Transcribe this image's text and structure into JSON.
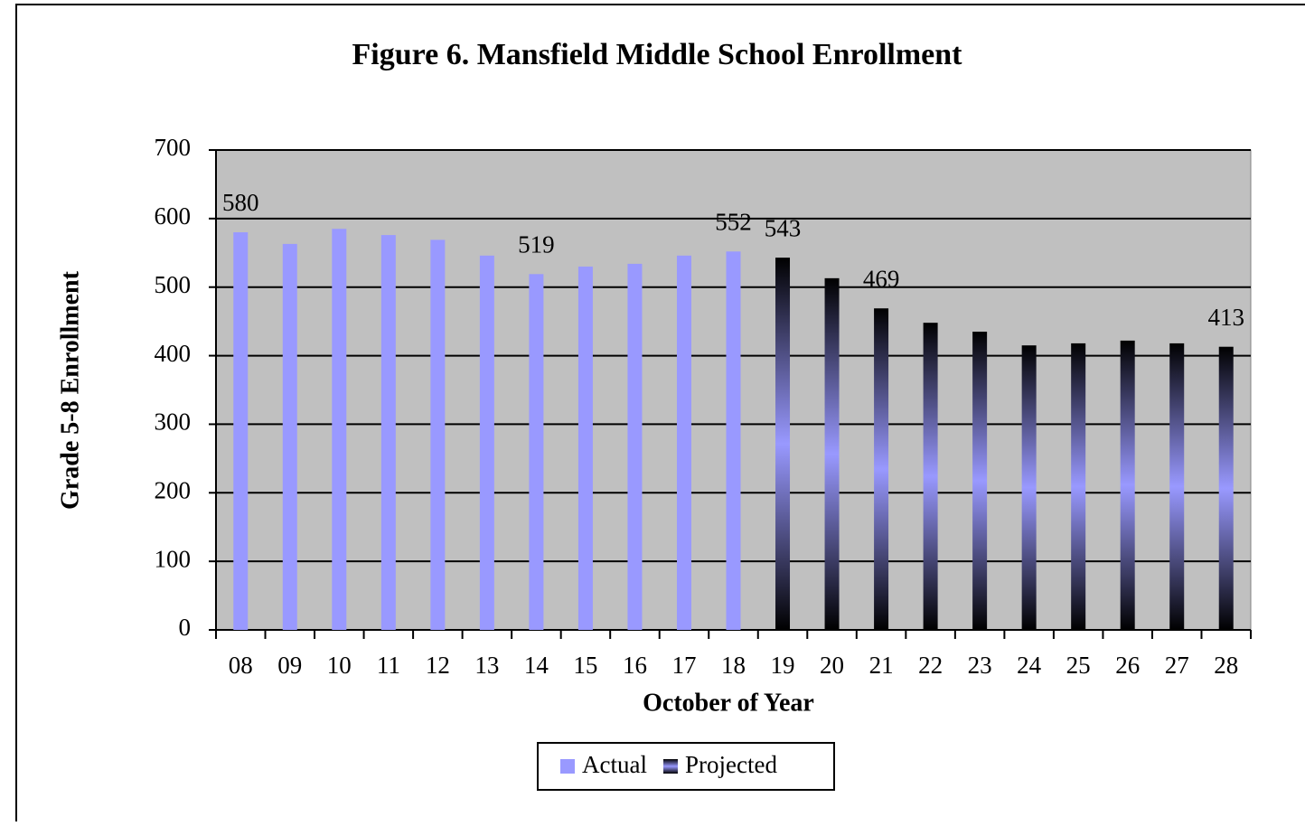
{
  "chart_data": {
    "type": "bar",
    "title": "Figure 6. Mansfield Middle School Enrollment",
    "x_label": "October of Year",
    "y_label": "Grade 5-8 Enrollment",
    "categories": [
      "08",
      "09",
      "10",
      "11",
      "12",
      "13",
      "14",
      "15",
      "16",
      "17",
      "18",
      "19",
      "20",
      "21",
      "22",
      "23",
      "24",
      "25",
      "26",
      "27",
      "28"
    ],
    "series": [
      {
        "name": "Actual",
        "color": "#9999ff",
        "values": [
          580,
          563,
          585,
          576,
          569,
          546,
          519,
          530,
          534,
          546,
          552,
          null,
          null,
          null,
          null,
          null,
          null,
          null,
          null,
          null,
          null
        ],
        "value_labels": [
          "580",
          null,
          null,
          null,
          null,
          null,
          "519",
          null,
          null,
          null,
          "552",
          null,
          null,
          null,
          null,
          null,
          null,
          null,
          null,
          null,
          null
        ]
      },
      {
        "name": "Projected",
        "color": "#9999ff",
        "gradient": [
          "#000000",
          "#9999ff"
        ],
        "values": [
          null,
          null,
          null,
          null,
          null,
          null,
          null,
          null,
          null,
          null,
          null,
          543,
          513,
          469,
          448,
          435,
          415,
          418,
          422,
          418,
          413
        ],
        "value_labels": [
          null,
          null,
          null,
          null,
          null,
          null,
          null,
          null,
          null,
          null,
          null,
          "543",
          null,
          "469",
          null,
          null,
          null,
          null,
          null,
          null,
          "413"
        ]
      }
    ],
    "ylim": [
      0,
      700
    ],
    "yticks": [
      0,
      100,
      200,
      300,
      400,
      500,
      600,
      700
    ],
    "grid": true,
    "plot_background": "#c0c0c0",
    "legend": "bottom"
  }
}
